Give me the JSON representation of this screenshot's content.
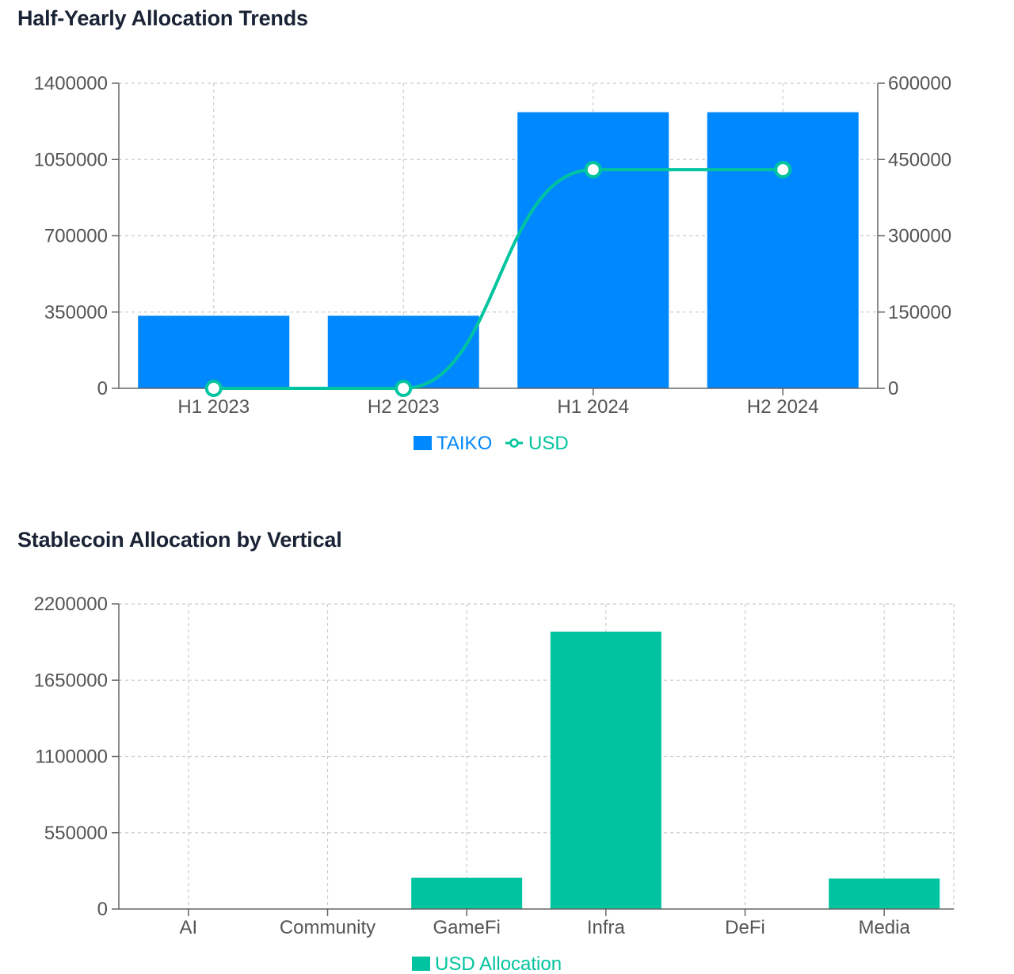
{
  "charts": [
    {
      "title": "Half-Yearly Allocation Trends"
    },
    {
      "title": "Stablecoin Allocation by Vertical"
    }
  ],
  "colors": {
    "taiko": "#0088fe",
    "usd": "#00c49f",
    "grid": "#cccccc",
    "axis": "#666666",
    "tick": "#555555",
    "title": "#1a2335"
  },
  "chart_data": [
    {
      "type": "bar",
      "title": "Half-Yearly Allocation Trends",
      "categories": [
        "H1 2023",
        "H2 2023",
        "H1 2024",
        "H2 2024"
      ],
      "series": [
        {
          "name": "TAIKO",
          "type": "bar",
          "axis": "left",
          "values": [
            333000,
            333000,
            1267000,
            1267000
          ]
        },
        {
          "name": "USD",
          "type": "line",
          "axis": "right",
          "values": [
            0,
            0,
            430000,
            430000
          ]
        }
      ],
      "y_left": {
        "ticks": [
          0,
          350000,
          700000,
          1050000,
          1400000
        ],
        "tick_labels": [
          "0",
          "350000",
          "700000",
          "1050000",
          "1400000"
        ],
        "lim": [
          0,
          1400000
        ]
      },
      "y_right": {
        "ticks": [
          0,
          150000,
          300000,
          450000,
          600000
        ],
        "tick_labels": [
          "0",
          "150000",
          "300000",
          "450000",
          "600000"
        ],
        "lim": [
          0,
          600000
        ]
      },
      "grid": true,
      "legend": "bottom-center"
    },
    {
      "type": "bar",
      "title": "Stablecoin Allocation by Vertical",
      "categories": [
        "AI",
        "Community",
        "GameFi",
        "Infra",
        "DeFi",
        "Media"
      ],
      "series": [
        {
          "name": "USD Allocation",
          "values": [
            0,
            0,
            225000,
            2000000,
            0,
            220000
          ]
        }
      ],
      "y": {
        "ticks": [
          0,
          550000,
          1100000,
          1650000,
          2200000
        ],
        "tick_labels": [
          "0",
          "550000",
          "1100000",
          "1650000",
          "2200000"
        ],
        "lim": [
          0,
          2200000
        ]
      },
      "grid": true,
      "legend": "bottom-center"
    }
  ]
}
